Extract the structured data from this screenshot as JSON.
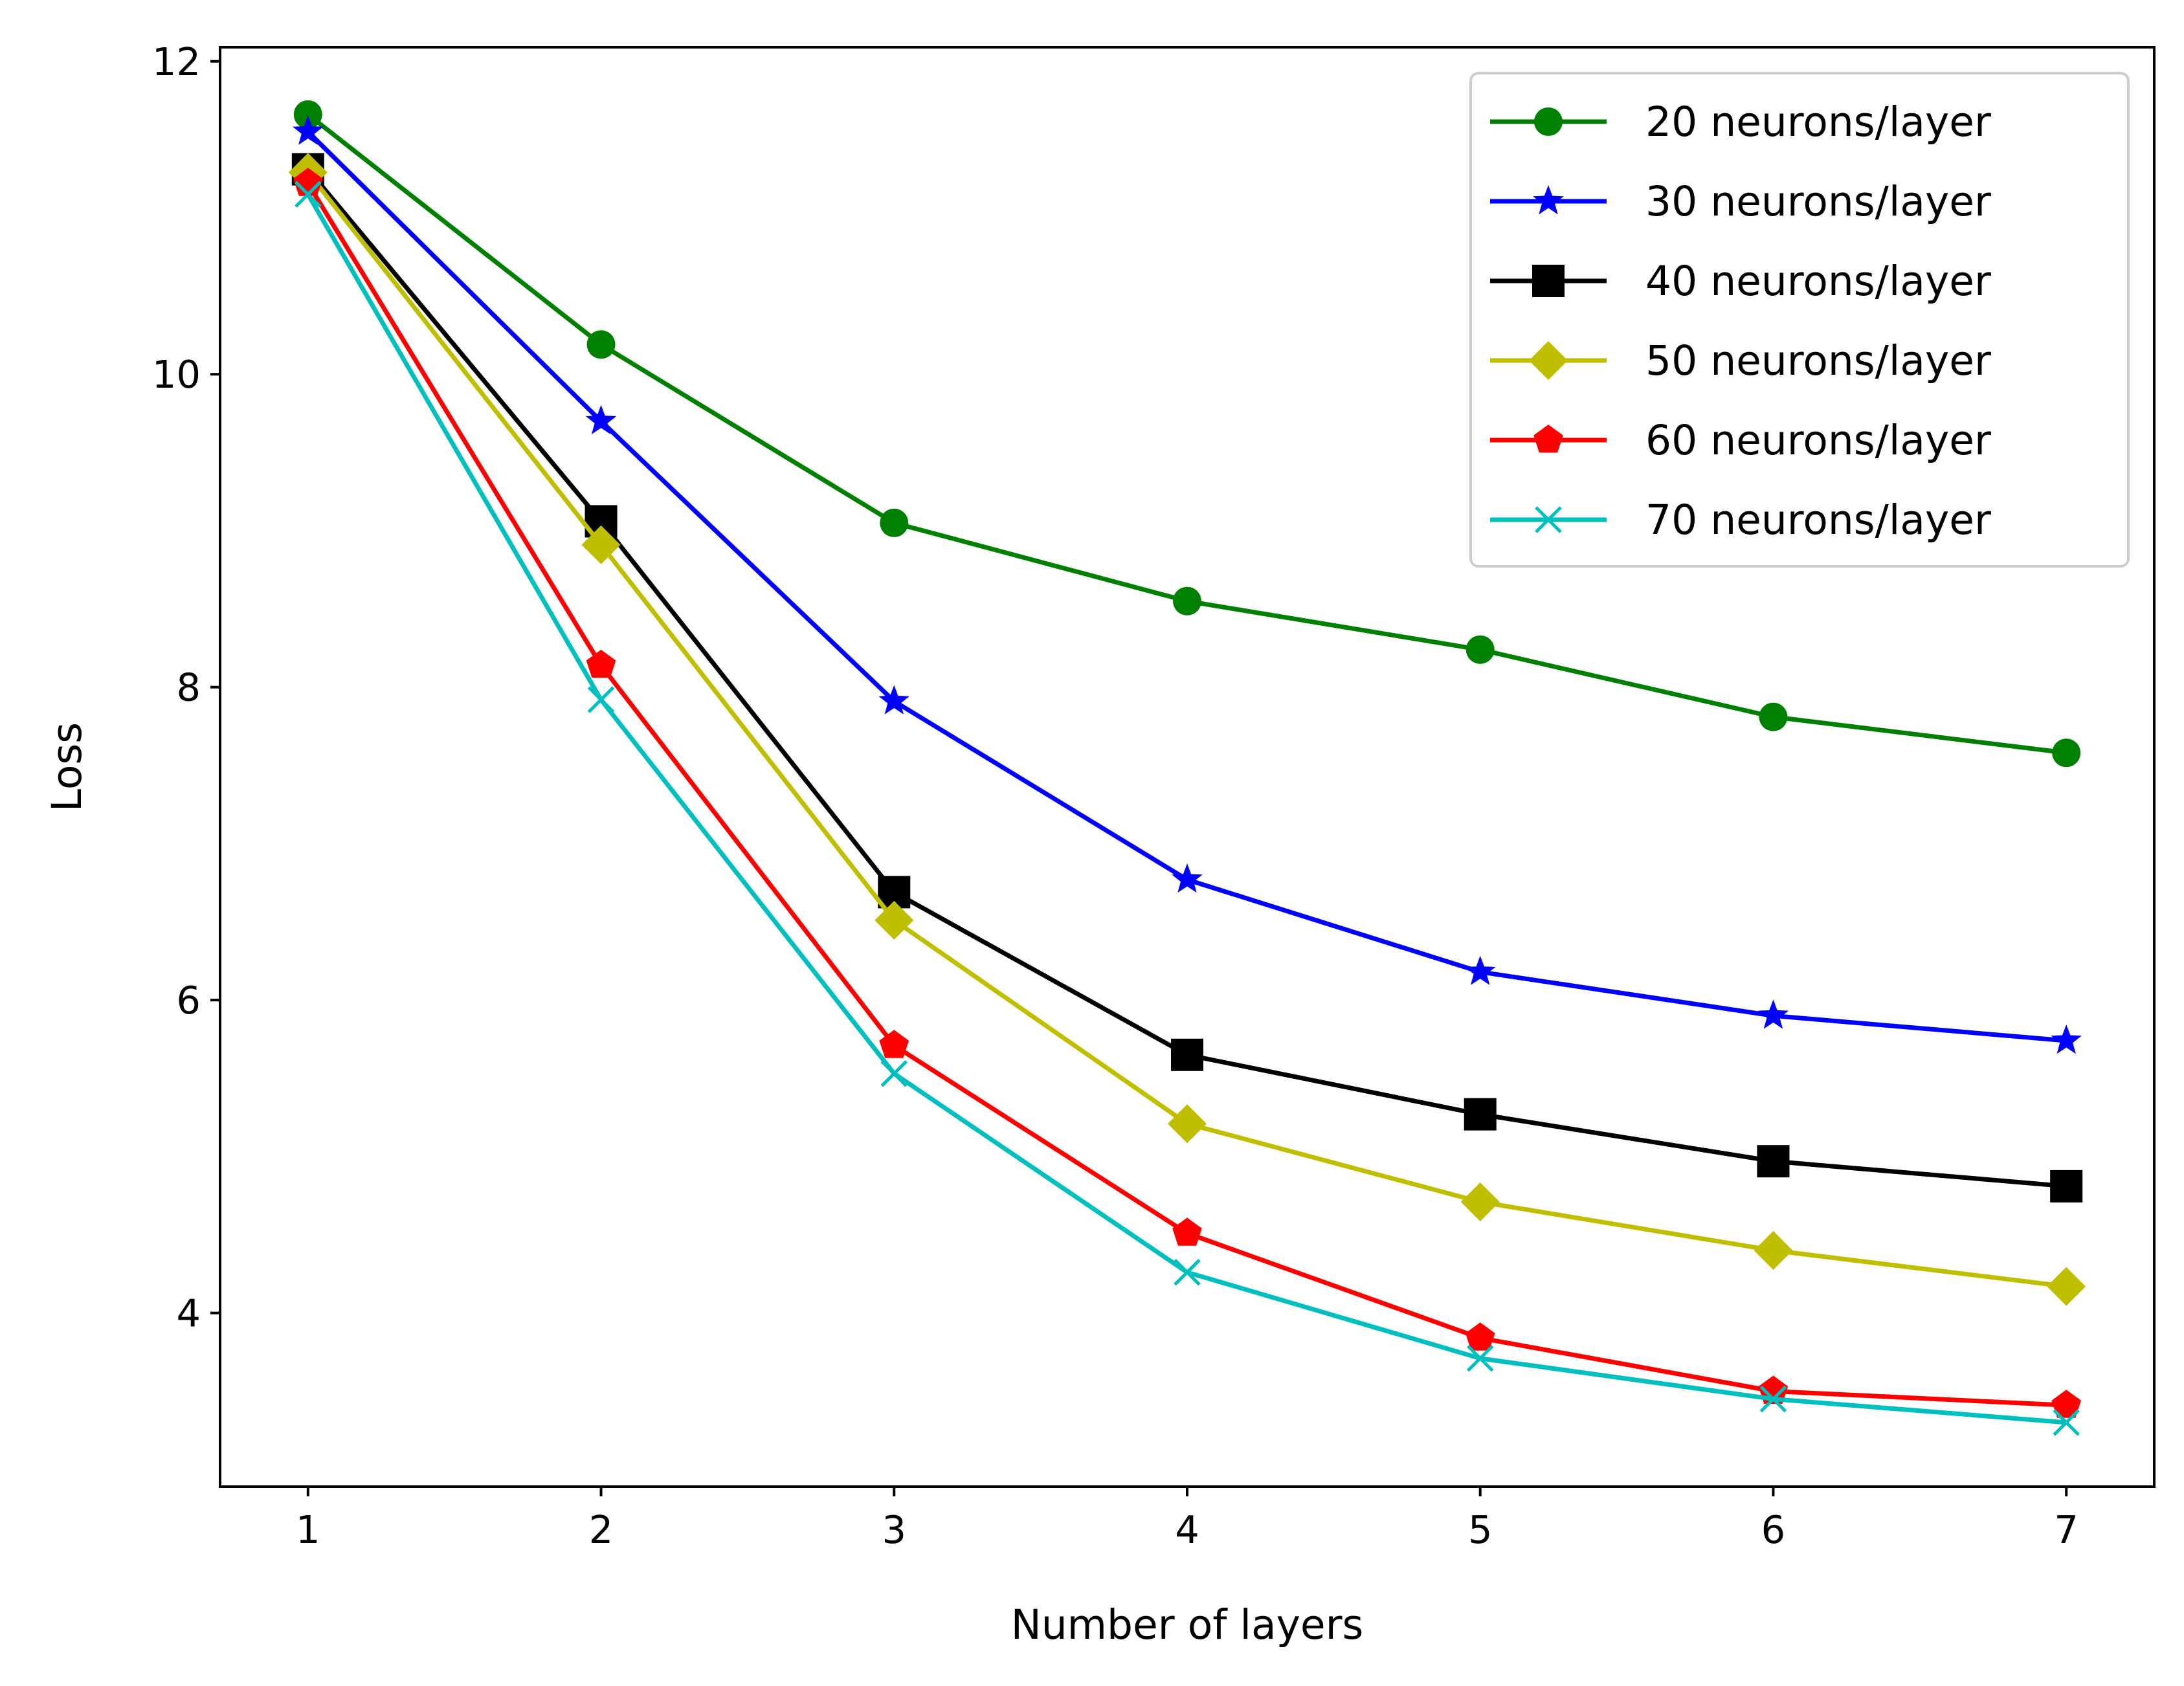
{
  "chart_data": {
    "type": "line",
    "xlabel": "Number of layers",
    "ylabel": "Loss",
    "x": [
      1,
      2,
      3,
      4,
      5,
      6,
      7
    ],
    "xlim": [
      0.7,
      7.3
    ],
    "ylim": [
      2.89,
      12.09
    ],
    "xticks": [
      1,
      2,
      3,
      4,
      5,
      6,
      7
    ],
    "yticks": [
      4,
      6,
      8,
      10,
      12
    ],
    "grid": false,
    "legend_position": "top-right",
    "series": [
      {
        "name": "20 neurons/layer",
        "color": "#008000",
        "marker": "circle",
        "values": [
          11.66,
          10.19,
          9.05,
          8.55,
          8.24,
          7.81,
          7.58
        ]
      },
      {
        "name": "30 neurons/layer",
        "color": "#0000ff",
        "marker": "star",
        "values": [
          11.55,
          9.7,
          7.91,
          6.77,
          6.18,
          5.9,
          5.74
        ]
      },
      {
        "name": "40 neurons/layer",
        "color": "#000000",
        "marker": "square",
        "values": [
          11.31,
          9.06,
          6.69,
          5.65,
          5.27,
          4.97,
          4.81
        ]
      },
      {
        "name": "50 neurons/layer",
        "color": "#bfbf00",
        "marker": "diamond",
        "values": [
          11.29,
          8.91,
          6.51,
          5.21,
          4.71,
          4.4,
          4.17
        ]
      },
      {
        "name": "60 neurons/layer",
        "color": "#ff0000",
        "marker": "pentagon",
        "values": [
          11.22,
          8.14,
          5.71,
          4.51,
          3.84,
          3.5,
          3.41
        ]
      },
      {
        "name": "70 neurons/layer",
        "color": "#00bfbf",
        "marker": "x",
        "values": [
          11.15,
          7.92,
          5.53,
          4.26,
          3.71,
          3.45,
          3.3
        ]
      }
    ]
  }
}
